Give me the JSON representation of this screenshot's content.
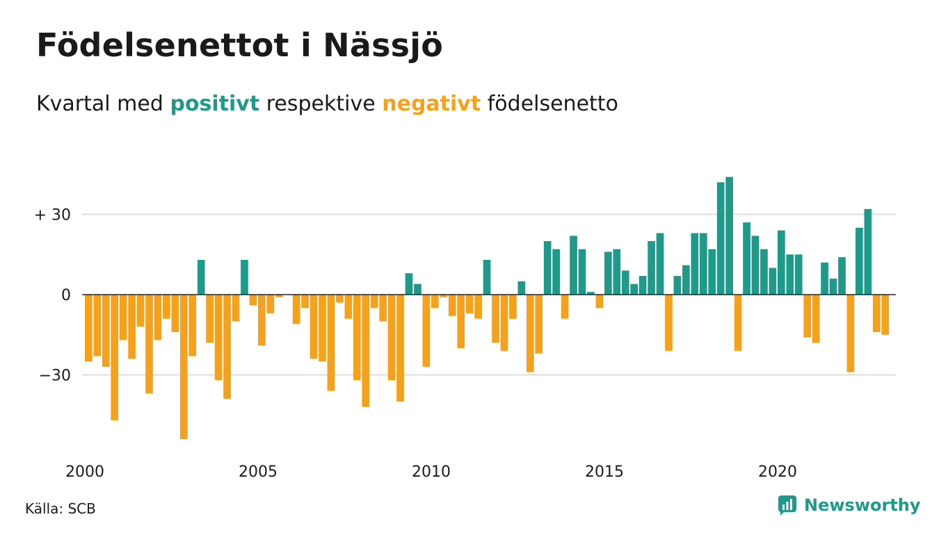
{
  "title": "Födelsenettot i Nässjö",
  "subtitle": {
    "prefix": "Kvartal med",
    "positive_word": "positivt",
    "middle": "respektive",
    "negative_word": "negativt",
    "suffix": "födelsenetto"
  },
  "colors": {
    "positive": "#1f9a8a",
    "negative": "#f5a11c",
    "grid": "#dddddd",
    "zero_line": "#222222"
  },
  "source": "Källa: SCB",
  "brand": {
    "name": "Newsworthy",
    "icon": "newsworthy-logo-icon"
  },
  "chart_data": {
    "type": "bar",
    "x_start": 2000,
    "x_tick_labels": [
      "2000",
      "2005",
      "2010",
      "2015",
      "2020"
    ],
    "y_tick_labels": [
      {
        "value": 30,
        "label": "+ 30"
      },
      {
        "value": 0,
        "label": "0"
      },
      {
        "value": -30,
        "label": "−30"
      }
    ],
    "ylim": [
      -55,
      45
    ],
    "quarters_per_year": 4,
    "values": [
      -25,
      -23,
      -27,
      -47,
      -17,
      -24,
      -12,
      -37,
      -17,
      -9,
      -14,
      -54,
      -23,
      13,
      -18,
      -32,
      -39,
      -10,
      13,
      -4,
      -19,
      -7,
      -1,
      0,
      -11,
      -5,
      -24,
      -25,
      -36,
      -3,
      -9,
      -32,
      -42,
      -5,
      -10,
      -32,
      -40,
      8,
      4,
      -27,
      -5,
      -1,
      -8,
      -20,
      -7,
      -9,
      13,
      -18,
      -21,
      -9,
      5,
      -29,
      -22,
      20,
      17,
      -9,
      22,
      17,
      1,
      -5,
      16,
      17,
      9,
      4,
      7,
      20,
      23,
      -21,
      7,
      11,
      23,
      23,
      17,
      42,
      44,
      -21,
      27,
      22,
      17,
      10,
      24,
      15,
      15,
      -16,
      -18,
      12,
      6,
      14,
      -29,
      25,
      32,
      -14,
      -15
    ]
  }
}
